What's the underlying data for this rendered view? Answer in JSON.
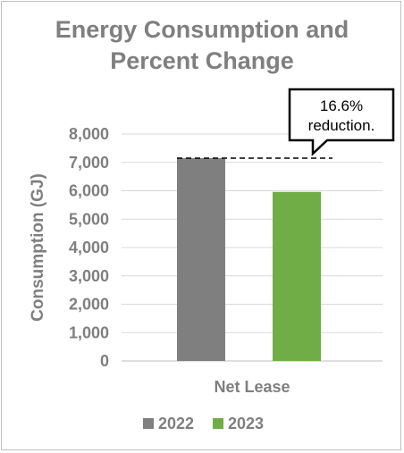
{
  "chart_data": {
    "type": "bar",
    "title_lines": [
      "Energy Consumption and",
      "Percent Change"
    ],
    "categories": [
      "Net Lease"
    ],
    "series": [
      {
        "name": "2022",
        "values": [
          7150
        ],
        "color": "#7f7f80"
      },
      {
        "name": "2023",
        "values": [
          5960
        ],
        "color": "#70ad47"
      }
    ],
    "ylabel": "Consumption  (GJ)",
    "xlabel": "",
    "ylim": [
      0,
      8000
    ],
    "yticks": [
      0,
      1000,
      2000,
      3000,
      4000,
      5000,
      6000,
      7000,
      8000
    ],
    "ytick_labels": [
      "0",
      "1,000",
      "2,000",
      "3,000",
      "4,000",
      "5,000",
      "6,000",
      "7,000",
      "8,000"
    ],
    "grid": true,
    "legend_position": "bottom",
    "annotation": {
      "lines": [
        "16.6%",
        "reduction."
      ],
      "reference_value": 7150,
      "reference_style": "dashed"
    }
  }
}
